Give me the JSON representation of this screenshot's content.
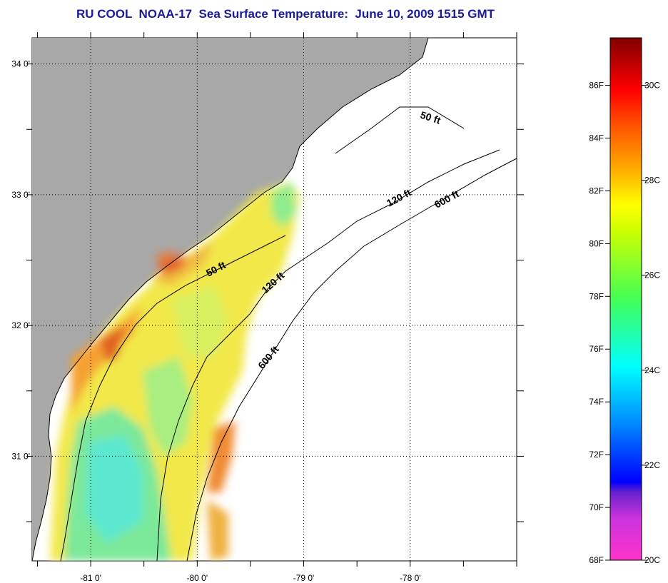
{
  "title": "RU COOL  NOAA-17  Sea Surface Temperature:  June 10, 2009 1515 GMT",
  "map": {
    "lat_ticks": [
      {
        "label": "34 0'",
        "value": 34
      },
      {
        "label": "33 0'",
        "value": 33
      },
      {
        "label": "32 0'",
        "value": 32
      },
      {
        "label": "31 0'",
        "value": 31
      }
    ],
    "lon_ticks": [
      {
        "label": "-81 0'",
        "value": -81
      },
      {
        "label": "-80 0'",
        "value": -80
      },
      {
        "label": "-79 0'",
        "value": -79
      },
      {
        "label": "-78 0'",
        "value": -78
      }
    ],
    "lon_range": [
      -81.55,
      -77.0
    ],
    "lat_range": [
      30.2,
      34.2
    ],
    "contour_labels": [
      "50 ft",
      "120 ft",
      "600 ft",
      "50 ft",
      "120 ft",
      "600 ft"
    ],
    "colors": {
      "land": "#a8a8a8",
      "no_data": "#ffffff",
      "coast": "#000000"
    }
  },
  "colorbar": {
    "fahrenheit_labels": [
      "86F",
      "84F",
      "82F",
      "80F",
      "78F",
      "76F",
      "74F",
      "72F",
      "70F",
      "68F"
    ],
    "celsius_labels": [
      "30C",
      "28C",
      "26C",
      "24C",
      "22C",
      "20C"
    ],
    "range_c": [
      20,
      31
    ]
  }
}
